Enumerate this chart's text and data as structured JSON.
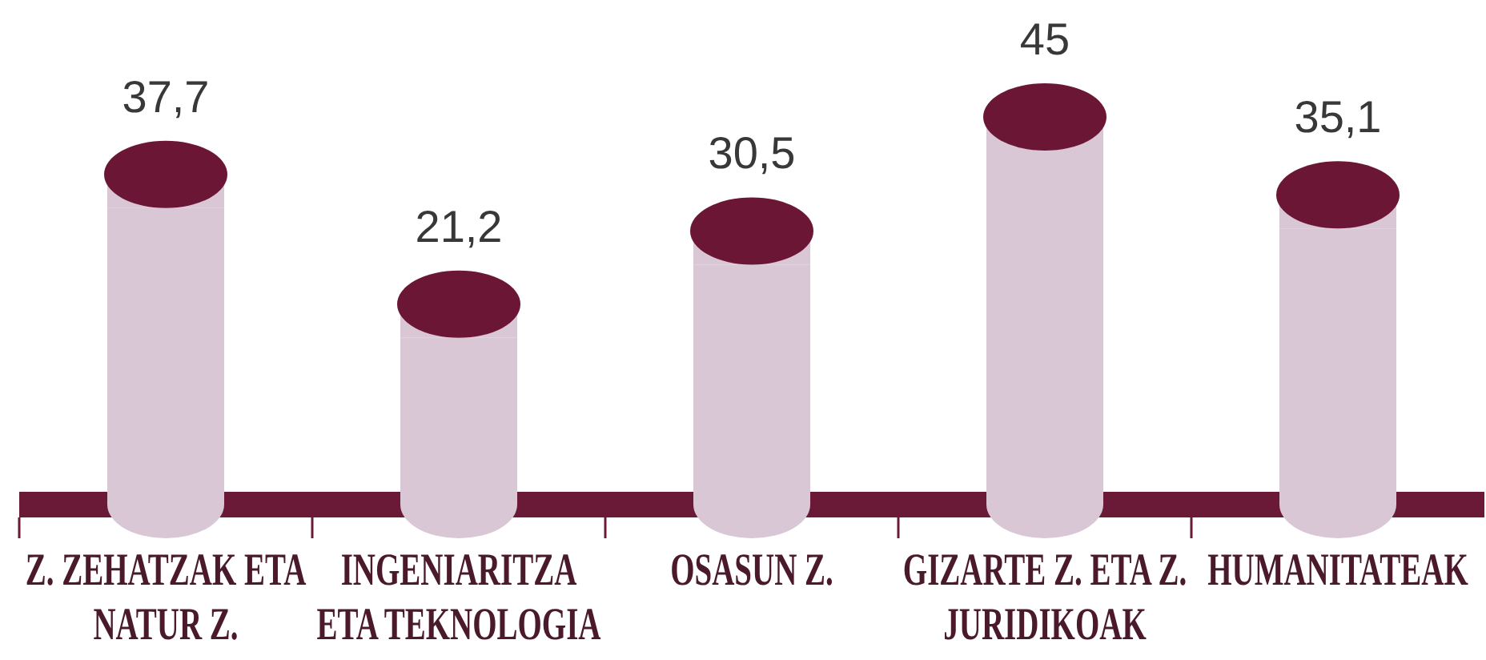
{
  "chart_data": {
    "type": "bar",
    "categories": [
      "Z. ZEHATZAK ETA NATUR Z.",
      "INGENIARITZA ETA TEKNOLOGIA",
      "OSASUN Z.",
      "GIZARTE Z. ETA Z. JURIDIKOAK",
      "HUMANITATEAK"
    ],
    "values": [
      37.7,
      21.2,
      30.5,
      45,
      35.1
    ],
    "value_labels": [
      "37,7",
      "21,2",
      "30,5",
      "45",
      "35,1"
    ],
    "color": "#dac7d5",
    "tick_labels": "x"
  }
}
